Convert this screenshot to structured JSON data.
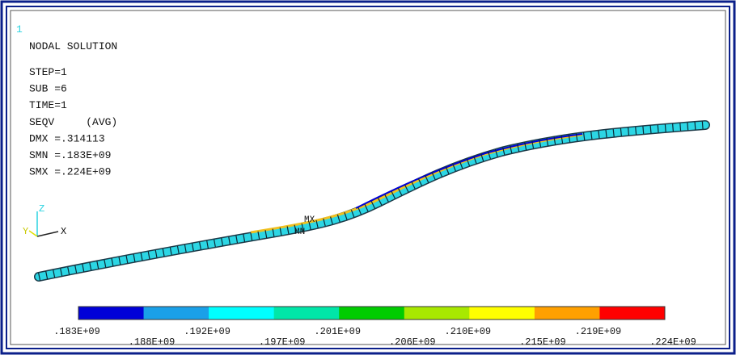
{
  "window_number": "1",
  "title": "NODAL SOLUTION",
  "info": [
    "STEP=1",
    "SUB =6",
    "TIME=1",
    "SEQV     (AVG)",
    "DMX =.314113",
    "SMN =.183E+09",
    "SMX =.224E+09"
  ],
  "triad": {
    "x": "X",
    "y": "Y",
    "z": "Z"
  },
  "markers": {
    "max": "MX",
    "min": "MN"
  },
  "legend": {
    "colors": [
      "#0000d8",
      "#1aa0e8",
      "#00ffff",
      "#00e6a8",
      "#00cc00",
      "#a8e800",
      "#ffff00",
      "#ffa000",
      "#ff0000"
    ],
    "labels": [
      ".183E+09",
      ".188E+09",
      ".192E+09",
      ".197E+09",
      ".201E+09",
      ".206E+09",
      ".210E+09",
      ".215E+09",
      ".219E+09",
      ".224E+09"
    ]
  }
}
